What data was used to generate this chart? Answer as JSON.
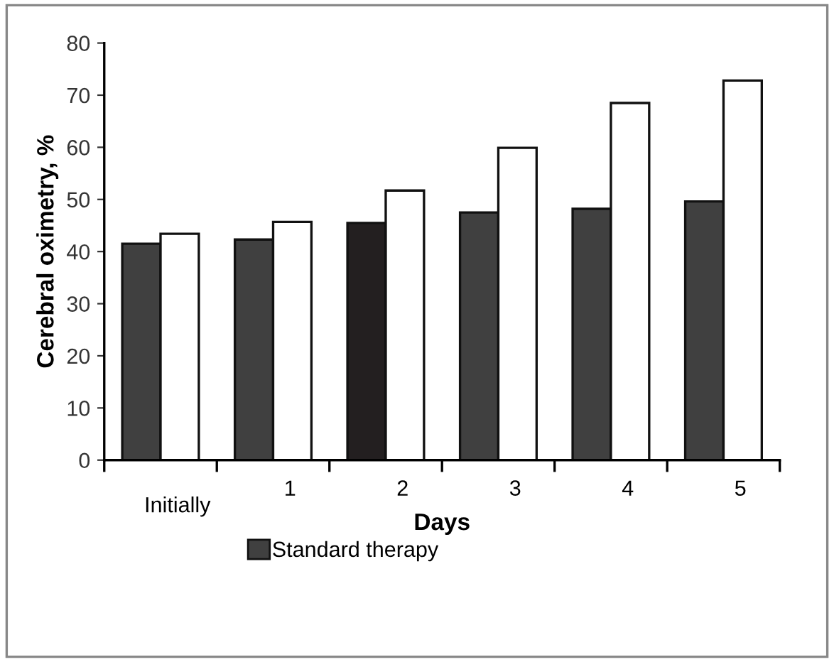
{
  "chart_data": {
    "type": "bar",
    "xlabel": "Days",
    "ylabel": "Cerebral oximetry, %",
    "categories": [
      "Initially",
      "1",
      "2",
      "3",
      "4",
      "5"
    ],
    "series": [
      {
        "name": "Standard therapy",
        "color": "#404040",
        "colors": [
          "#404040",
          "#404040",
          "#231f20",
          "#404040",
          "#404040",
          "#404040"
        ],
        "values": [
          41.5,
          42.3,
          45.5,
          47.5,
          48.2,
          49.6
        ]
      },
      {
        "color": "#ffffff",
        "values": [
          43.4,
          45.7,
          51.7,
          59.9,
          68.5,
          72.8
        ]
      }
    ],
    "ylim": [
      0,
      80
    ],
    "yticks": [
      0,
      10,
      20,
      30,
      40,
      50,
      60,
      70,
      80
    ],
    "grid": false,
    "legend": "bottom"
  }
}
